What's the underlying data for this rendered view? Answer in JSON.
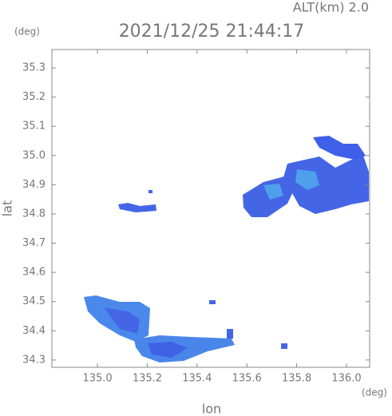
{
  "chart_data": {
    "type": "map",
    "title": "2021/12/25 21:44:17",
    "subtitle": "ALT(km)  2.0",
    "x_label": "lon",
    "y_label": "lat",
    "x_unit": "(deg)",
    "y_unit": "(deg)",
    "xlim": [
      134.817,
      136.093
    ],
    "ylim": [
      34.275,
      35.363
    ],
    "xticks": [
      {
        "value": 135.0,
        "label": "135.0"
      },
      {
        "value": 135.2,
        "label": "135.2"
      },
      {
        "value": 135.4,
        "label": "135.4"
      },
      {
        "value": 135.6,
        "label": "135.6"
      },
      {
        "value": 135.8,
        "label": "135.8"
      },
      {
        "value": 136.0,
        "label": "136.0"
      }
    ],
    "yticks": [
      {
        "value": 34.3,
        "label": "34.3"
      },
      {
        "value": 34.4,
        "label": "34.4"
      },
      {
        "value": 34.5,
        "label": "34.5"
      },
      {
        "value": 34.6,
        "label": "34.6"
      },
      {
        "value": 34.7,
        "label": "34.7"
      },
      {
        "value": 34.8,
        "label": "34.8"
      },
      {
        "value": 34.9,
        "label": "34.9"
      },
      {
        "value": 35.0,
        "label": "35.0"
      },
      {
        "value": 35.1,
        "label": "35.1"
      },
      {
        "value": 35.2,
        "label": "35.2"
      },
      {
        "value": 35.3,
        "label": "35.3"
      }
    ]
  }
}
